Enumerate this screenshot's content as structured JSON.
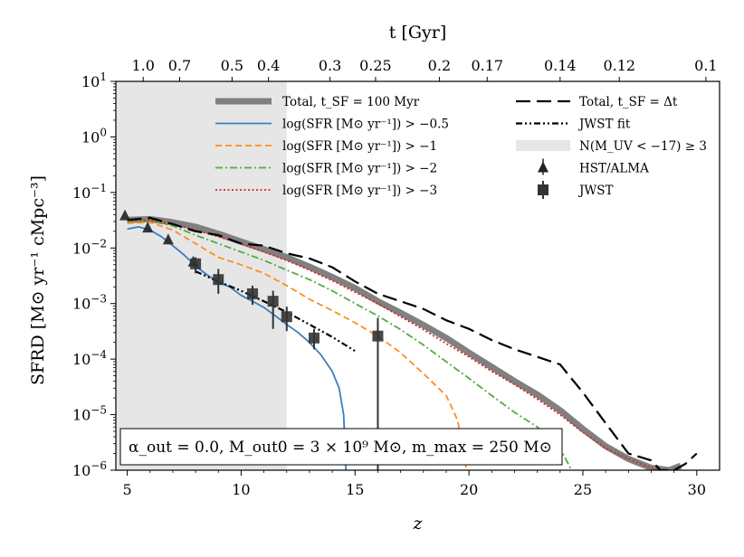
{
  "chart_data": {
    "type": "line",
    "xlabel": "z",
    "ylabel": "SFRD [M⊙ yr⁻¹ cMpc⁻³]",
    "top_xlabel": "t [Gyr]",
    "xlim": [
      4.5,
      31
    ],
    "ylim": [
      1e-06,
      10
    ],
    "yscale": "log",
    "x_ticks": [
      5,
      10,
      15,
      20,
      25,
      30
    ],
    "x_tick_labels": [
      "5",
      "10",
      "15",
      "20",
      "25",
      "30"
    ],
    "y_ticks": [
      1e-06,
      1e-05,
      0.0001,
      0.001,
      0.01,
      0.1,
      1,
      10
    ],
    "y_tick_labels": [
      "10⁻⁶",
      "10⁻⁵",
      "10⁻⁴",
      "10⁻³",
      "10⁻²",
      "10⁻¹",
      "10⁰",
      "10¹"
    ],
    "top_ticks": [
      {
        "label": "1.0",
        "z": 5.7
      },
      {
        "label": "0.7",
        "z": 7.3
      },
      {
        "label": "0.5",
        "z": 9.6
      },
      {
        "label": "0.4",
        "z": 11.2
      },
      {
        "label": "0.3",
        "z": 13.9
      },
      {
        "label": "0.25",
        "z": 15.9
      },
      {
        "label": "0.2",
        "z": 18.7
      },
      {
        "label": "0.17",
        "z": 20.8
      },
      {
        "label": "0.14",
        "z": 24.0
      },
      {
        "label": "0.12",
        "z": 26.6
      },
      {
        "label": "0.1",
        "z": 30.4
      }
    ],
    "shaded_region": {
      "x": [
        4.5,
        12.0
      ],
      "label": "N(M_UV < −17) ≥ 3",
      "color": "#e6e6e6"
    },
    "series": [
      {
        "name": "Total, t_SF = 100 Myr",
        "color": "#808080",
        "style": "solid",
        "width": "thick",
        "x": [
          5,
          6,
          7,
          8,
          9,
          10,
          11,
          12,
          13,
          14,
          15,
          16,
          17,
          18,
          19,
          20,
          21,
          22,
          23,
          24,
          25,
          26,
          27,
          28,
          28.8,
          29.3
        ],
        "y": [
          0.032,
          0.033,
          0.029,
          0.024,
          0.018,
          0.013,
          0.0095,
          0.0068,
          0.0046,
          0.003,
          0.0019,
          0.0011,
          0.00068,
          0.00041,
          0.00024,
          0.00013,
          7.2e-05,
          4e-05,
          2.3e-05,
          1.2e-05,
          5.5e-06,
          2.7e-06,
          1.6e-06,
          1.1e-06,
          1e-06,
          1.2e-06
        ]
      },
      {
        "name": "log(SFR [M⊙ yr⁻¹]) > −0.5",
        "color": "#3a7ebf",
        "style": "solid",
        "width": "thin",
        "x": [
          5,
          5.5,
          6,
          6.5,
          7,
          7.5,
          8,
          8.5,
          9,
          9.5,
          10,
          10.5,
          11,
          11.5,
          12,
          12.5,
          13,
          13.5,
          14,
          14.3,
          14.5,
          14.6
        ],
        "y": [
          0.022,
          0.024,
          0.021,
          0.016,
          0.011,
          0.0075,
          0.0047,
          0.0033,
          0.0024,
          0.002,
          0.0014,
          0.0011,
          0.00085,
          0.0006,
          0.00042,
          0.0003,
          0.0002,
          0.00012,
          6e-05,
          3e-05,
          1e-05,
          1e-06
        ]
      },
      {
        "name": "log(SFR [M⊙ yr⁻¹]) > −1",
        "color": "#ff8c1a",
        "style": "dashed",
        "width": "thin",
        "x": [
          5,
          6,
          7,
          8,
          9,
          10,
          11,
          12,
          13,
          14,
          15,
          16,
          17,
          18,
          19,
          19.5,
          19.9
        ],
        "y": [
          0.028,
          0.029,
          0.021,
          0.012,
          0.0068,
          0.005,
          0.0035,
          0.0021,
          0.0012,
          0.00075,
          0.00045,
          0.00026,
          0.00013,
          5.5e-05,
          2.2e-05,
          8e-06,
          1e-06
        ]
      },
      {
        "name": "log(SFR [M⊙ yr⁻¹]) > −2",
        "color": "#55aa44",
        "style": "dashdot",
        "width": "thin",
        "x": [
          5,
          6,
          7,
          8,
          9,
          10,
          11,
          12,
          13,
          14,
          15,
          16,
          17,
          18,
          19,
          20,
          21,
          22,
          23,
          24,
          24.5
        ],
        "y": [
          0.03,
          0.031,
          0.025,
          0.017,
          0.012,
          0.0085,
          0.006,
          0.004,
          0.0027,
          0.0017,
          0.001,
          0.0006,
          0.00034,
          0.00018,
          9e-05,
          4.5e-05,
          2.2e-05,
          1.1e-05,
          6e-06,
          2.5e-06,
          1e-06
        ]
      },
      {
        "name": "log(SFR [M⊙ yr⁻¹]) > −3",
        "color": "#e02020",
        "style": "dotted",
        "width": "thin",
        "x": [
          5,
          6,
          7,
          8,
          9,
          10,
          11,
          12,
          13,
          14,
          15,
          16,
          17,
          18,
          19,
          20,
          21,
          22,
          23,
          24,
          25,
          26,
          27,
          28,
          28.5
        ],
        "y": [
          0.031,
          0.032,
          0.027,
          0.021,
          0.016,
          0.012,
          0.0085,
          0.006,
          0.004,
          0.0026,
          0.0016,
          0.001,
          0.00058,
          0.00034,
          0.00019,
          0.00011,
          6e-05,
          3.5e-05,
          1.9e-05,
          1e-05,
          4.8e-06,
          2.5e-06,
          1.6e-06,
          1.1e-06,
          1e-06
        ]
      },
      {
        "name": "Total, t_SF = Δt",
        "color": "#000000",
        "style": "longdash",
        "width": "medium",
        "x": [
          5,
          6,
          7,
          8,
          9,
          10,
          11,
          12,
          13,
          14,
          15,
          16,
          17,
          18,
          19,
          20,
          21,
          22,
          23,
          24,
          25,
          26,
          27,
          28,
          28.4,
          29,
          29.5,
          30
        ],
        "y": [
          0.032,
          0.035,
          0.027,
          0.02,
          0.017,
          0.012,
          0.011,
          0.008,
          0.0065,
          0.0045,
          0.0025,
          0.0015,
          0.0011,
          0.0008,
          0.0005,
          0.00035,
          0.00022,
          0.00015,
          0.00011,
          8e-05,
          2.5e-05,
          7e-06,
          2e-06,
          1.5e-06,
          1e-06,
          1e-06,
          1.3e-06,
          2e-06
        ]
      },
      {
        "name": "JWST fit",
        "color": "#000000",
        "style": "dashdotdot",
        "width": "medium",
        "x": [
          8,
          9,
          10,
          11,
          12,
          13,
          14,
          15
        ],
        "y": [
          0.0038,
          0.0025,
          0.0017,
          0.0011,
          0.0007,
          0.00042,
          0.00025,
          0.00014
        ]
      }
    ],
    "hst_alma": {
      "name": "HST/ALMA",
      "x": [
        4.9,
        5.9,
        6.8,
        7.9
      ],
      "y": [
        0.038,
        0.023,
        0.014,
        0.0056
      ]
    },
    "jwst": {
      "name": "JWST",
      "x": [
        8.0,
        9.0,
        10.5,
        11.4,
        12.0,
        13.2,
        16.0
      ],
      "y": [
        0.0052,
        0.0027,
        0.0015,
        0.0011,
        0.00058,
        0.00024,
        0.00026
      ],
      "y_lo": [
        0.0035,
        0.0015,
        0.00095,
        0.00035,
        0.00032,
        0.00015,
        1e-06
      ],
      "y_hi": [
        0.0068,
        0.0042,
        0.0021,
        0.0017,
        0.00088,
        0.00035,
        0.00055
      ]
    },
    "legend_placement": "top",
    "annotation": "α_out = 0.0, M_out0 = 3 × 10⁹ M⊙, m_max = 250 M⊙"
  }
}
